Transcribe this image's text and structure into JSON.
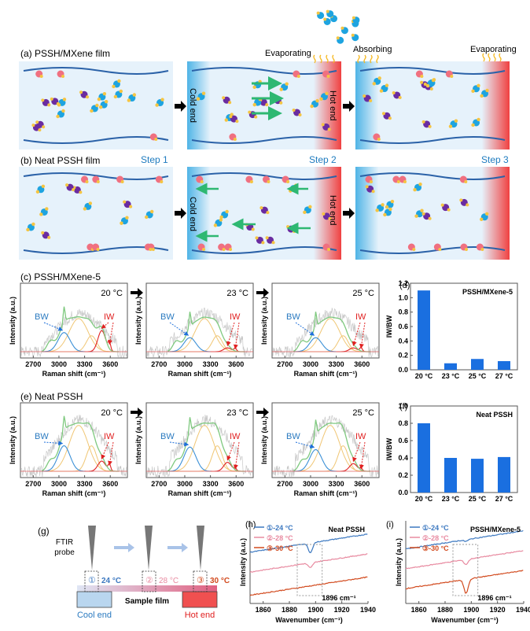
{
  "panel_a": {
    "label": "(a) PSSH/MXene film",
    "evaporating_1": "Evaporating",
    "absorbing": "Absorbing",
    "evaporating_2": "Evaporating",
    "cold_end": "Cold end",
    "hot_end": "Hot end"
  },
  "panel_b": {
    "label": "(b) Neat PSSH film",
    "step1": "Step 1",
    "step2": "Step 2",
    "step3": "Step 3",
    "cold_end": "Cold end",
    "hot_end": "Hot end"
  },
  "panel_c": {
    "label": "(c)  PSSH/MXene-5",
    "temps": [
      "20 °C",
      "23 °C",
      "25 °C"
    ]
  },
  "panel_e": {
    "label": "(e)  Neat PSSH",
    "temps": [
      "20 °C",
      "23 °C",
      "25 °C"
    ]
  },
  "raman": {
    "ylabel": "Intensity (a.u.)",
    "xlabel": "Raman shift (cm⁻¹)",
    "xticks": [
      "2700",
      "3000",
      "3300",
      "3600"
    ],
    "bw": "BW",
    "iw": "IW"
  },
  "panel_g": {
    "label": "(g)",
    "probe": "FTIR",
    "probe2": "probe",
    "p1": "①",
    "p2": "②",
    "p3": "③",
    "t1": "24 °C",
    "t2": "28 °C",
    "t3": "30 °C",
    "sample": "Sample film",
    "cool": "Cool end",
    "hot": "Hot end"
  },
  "colors": {
    "blue": "#1e6fd9",
    "bw": "#3a8fd6",
    "iw": "#e02020",
    "green": "#7fc97f",
    "yellow": "#f0c674",
    "c24": "#3c78c0",
    "c28": "#e88aa0",
    "c30": "#d24a1e",
    "bar": "#1a6fe0"
  },
  "chart_data": [
    {
      "type": "bar",
      "panel": "(d)",
      "title": "PSSH/MXene-5",
      "ylabel": "IW/BW",
      "categories": [
        "20 °C",
        "23 °C",
        "25 °C",
        "27 °C"
      ],
      "values": [
        1.1,
        0.09,
        0.15,
        0.12
      ],
      "ylim": [
        0,
        1.2
      ],
      "yticks": [
        "0.0",
        "0.2",
        "0.4",
        "0.6",
        "0.8",
        "1.0",
        "1.2"
      ]
    },
    {
      "type": "bar",
      "panel": "(f)",
      "title": "Neat PSSH",
      "ylabel": "IW/BW",
      "categories": [
        "20 °C",
        "23 °C",
        "25 °C",
        "27 °C"
      ],
      "values": [
        0.8,
        0.4,
        0.39,
        0.41
      ],
      "ylim": [
        0,
        1.0
      ],
      "yticks": [
        "0.0",
        "0.2",
        "0.4",
        "0.6",
        "0.8",
        "1.0"
      ]
    },
    {
      "type": "line",
      "panel": "(h)",
      "title": "Neat PSSH",
      "xlabel": "Wavenumber (cm⁻¹)",
      "ylabel": "Intensity (a.u.)",
      "xlim": [
        1850,
        1940
      ],
      "xticks": [
        "1860",
        "1880",
        "1900",
        "1920",
        "1940"
      ],
      "annotation": "1896 cm⁻¹",
      "series": [
        {
          "name": "①-24 °C",
          "offset": 0.62,
          "dip": 0.12
        },
        {
          "name": "②-28 °C",
          "offset": 0.38,
          "dip": 0.06
        },
        {
          "name": "③-30 °C",
          "offset": 0.1,
          "dip": 0.0
        }
      ]
    },
    {
      "type": "line",
      "panel": "(i)",
      "title": "PSSH/MXene-5",
      "xlabel": "Wavenumber (cm⁻¹)",
      "ylabel": "Intensity (a.u.)",
      "xlim": [
        1850,
        1940
      ],
      "xticks": [
        "1860",
        "1880",
        "1900",
        "1920",
        "1940"
      ],
      "annotation": "1896 cm⁻¹",
      "series": [
        {
          "name": "①-24 °C",
          "offset": 0.66,
          "dip": 0.02
        },
        {
          "name": "②-28 °C",
          "offset": 0.42,
          "dip": 0.06
        },
        {
          "name": "③-30 °C",
          "offset": 0.18,
          "dip": 0.17
        }
      ]
    }
  ]
}
